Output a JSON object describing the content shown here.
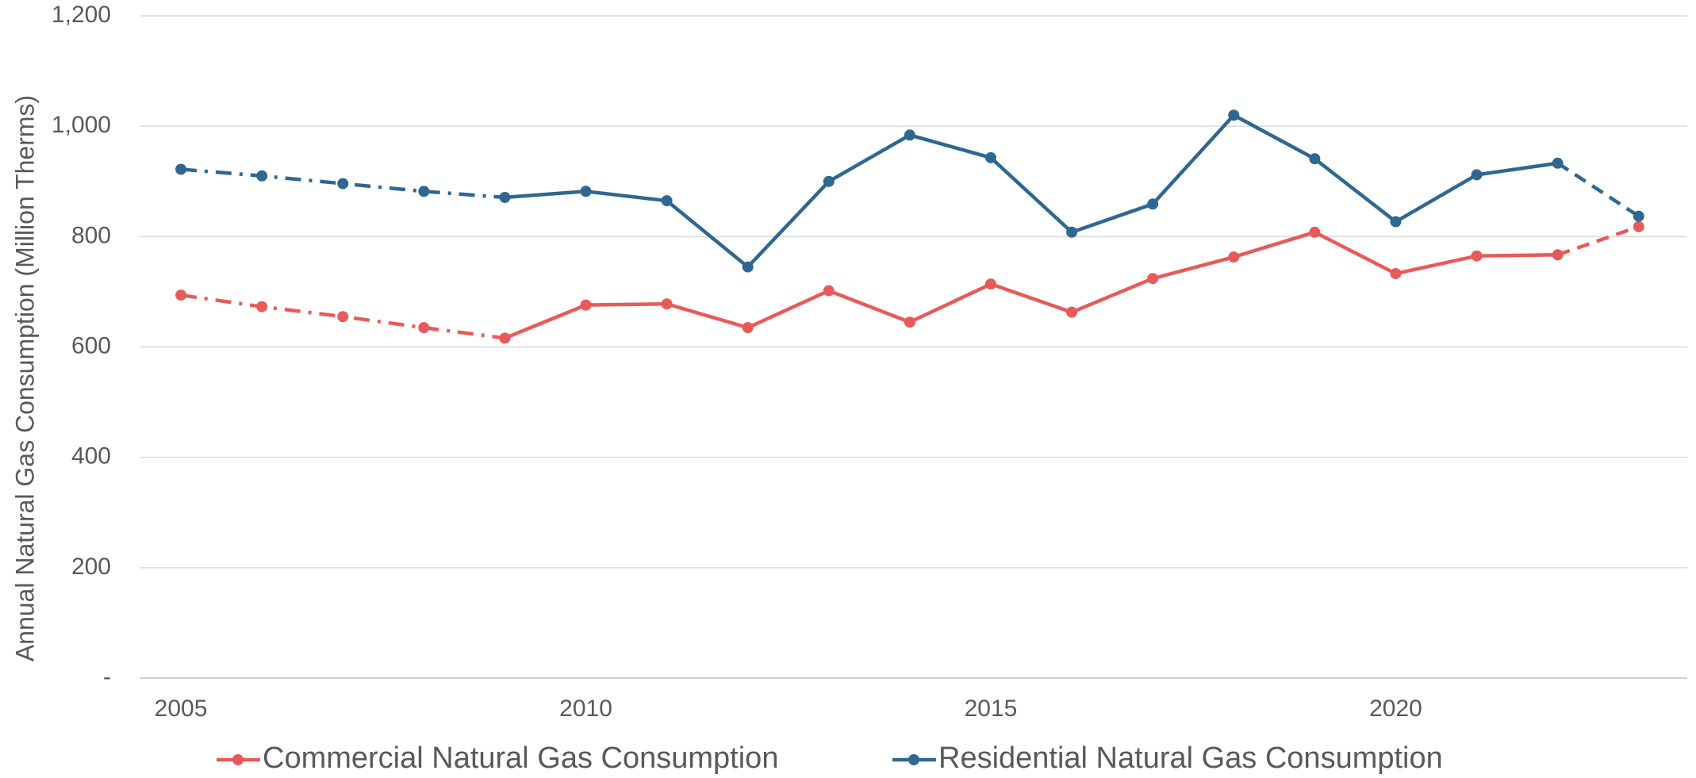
{
  "chart_data": {
    "type": "line",
    "y_label": "Annual Natural Gas Consumption (Million Therms)",
    "x": [
      2005,
      2006,
      2007,
      2008,
      2009,
      2010,
      2011,
      2012,
      2013,
      2014,
      2015,
      2016,
      2017,
      2018,
      2019,
      2020,
      2021,
      2022,
      2023
    ],
    "series": [
      {
        "name": "Commercial Natural Gas Consumption",
        "color": "#e85a5a",
        "values": [
          694,
          673,
          655,
          635,
          616,
          676,
          678,
          635,
          702,
          645,
          714,
          663,
          724,
          763,
          808,
          733,
          765,
          767,
          818
        ]
      },
      {
        "name": "Residential Natural Gas Consumption",
        "color": "#2e6791",
        "values": [
          922,
          910,
          896,
          882,
          871,
          882,
          865,
          745,
          900,
          984,
          943,
          808,
          859,
          1020,
          941,
          827,
          912,
          933,
          837
        ]
      }
    ],
    "line_styles": [
      {
        "from": 2005,
        "to": 2009,
        "style": "dash-dot"
      },
      {
        "from": 2009,
        "to": 2022,
        "style": "solid"
      },
      {
        "from": 2022,
        "to": 2023,
        "style": "dashed"
      }
    ],
    "xlim": [
      2004.5,
      2023.6
    ],
    "xticks": [
      2005,
      2010,
      2015,
      2020
    ],
    "ylim": [
      0,
      1200
    ],
    "yticks": [
      {
        "value": 0,
        "label": "-"
      },
      200,
      400,
      600,
      800,
      {
        "value": 1000,
        "label": "1,000"
      },
      {
        "value": 1200,
        "label": "1,200"
      }
    ],
    "grid": true,
    "legend": "bottom"
  }
}
